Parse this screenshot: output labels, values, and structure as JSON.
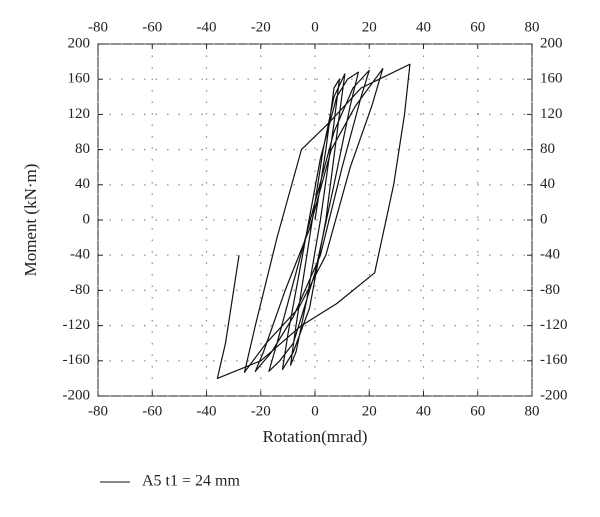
{
  "chart_data": {
    "type": "line",
    "xlabel": "Rotation(mrad)",
    "ylabel": "Moment (kN·m)",
    "x": [
      0,
      4,
      7,
      9,
      7,
      2,
      -3,
      -7,
      -9,
      -7,
      -2,
      3,
      7,
      11,
      9,
      4,
      -2,
      -8,
      -12,
      -10,
      -4,
      2,
      8,
      12,
      16,
      13,
      7,
      0,
      -8,
      -13,
      -17,
      -14,
      -7,
      0,
      7,
      14,
      20,
      17,
      10,
      2,
      -8,
      -16,
      -22,
      -19,
      -11,
      -2,
      6,
      15,
      25,
      21,
      13,
      4,
      -6,
      -18,
      -26,
      -22,
      -14,
      -5,
      5,
      17,
      35,
      33,
      29,
      22,
      8,
      -5,
      -20,
      -36,
      -33,
      -30,
      -28
    ],
    "series": [
      {
        "name": "A5 t1 = 24 mm",
        "color": "#111111",
        "values": [
          0,
          80,
          150,
          160,
          110,
          0,
          -90,
          -150,
          -165,
          -120,
          -20,
          80,
          140,
          166,
          120,
          0,
          -100,
          -150,
          -170,
          -130,
          -30,
          70,
          140,
          160,
          168,
          130,
          40,
          -60,
          -140,
          -160,
          -172,
          -140,
          -60,
          20,
          100,
          150,
          170,
          140,
          60,
          -40,
          -110,
          -150,
          -172,
          -150,
          -80,
          -10,
          80,
          130,
          172,
          130,
          60,
          -40,
          -100,
          -140,
          -173,
          -120,
          -20,
          80,
          110,
          150,
          177,
          120,
          40,
          -60,
          -95,
          -120,
          -160,
          -180,
          -140,
          -80,
          -40
        ]
      }
    ],
    "xlim": [
      -80,
      80
    ],
    "xticks": [
      -80,
      -60,
      -40,
      -20,
      0,
      20,
      40,
      60,
      80
    ],
    "ylim": [
      -200,
      200
    ],
    "yticks": [
      -200,
      -160,
      -120,
      -80,
      -40,
      0,
      40,
      80,
      120,
      160,
      200
    ],
    "grid": true
  }
}
